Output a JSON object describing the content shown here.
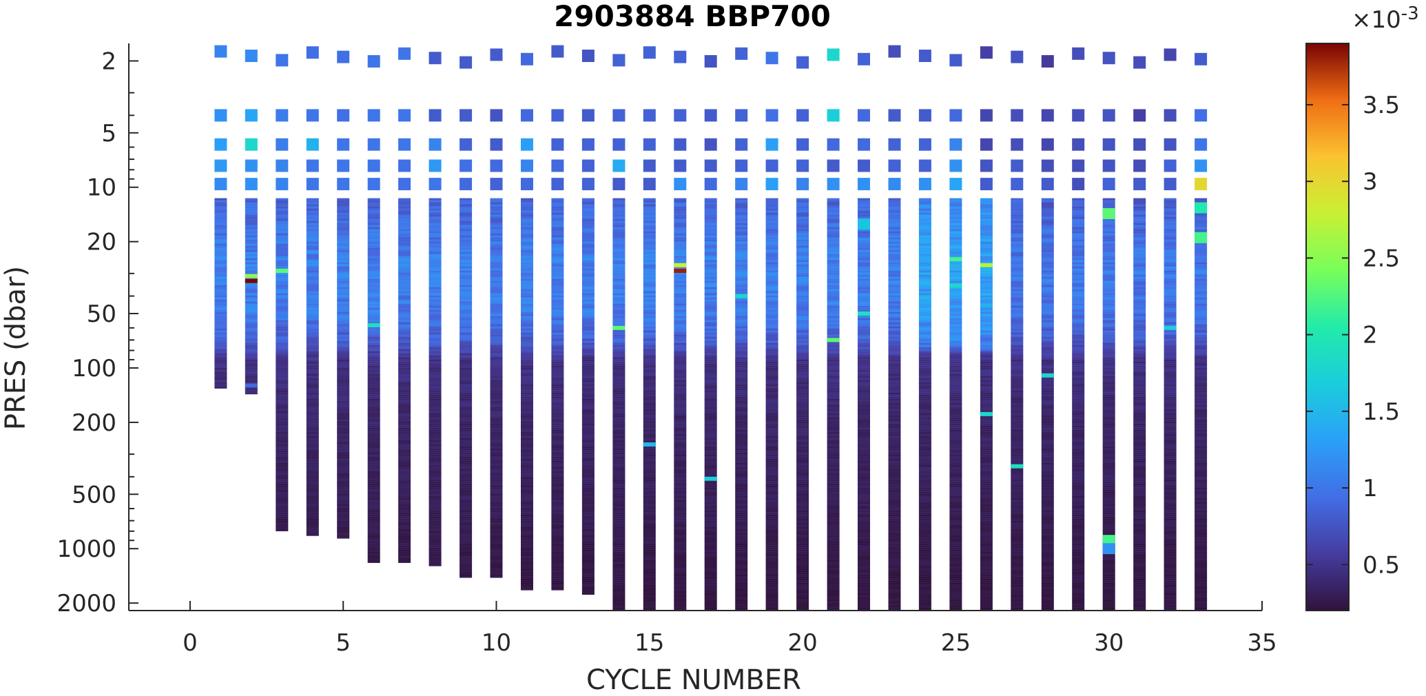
{
  "chart_data": {
    "type": "heatmap",
    "title": "2903884 BBP700",
    "xlabel": "CYCLE NUMBER",
    "ylabel": "PRES (dbar)",
    "xlim": [
      -2,
      35
    ],
    "ylim": [
      2200,
      1.6
    ],
    "yscale": "log",
    "y_reversed": true,
    "x_ticks": [
      0,
      5,
      10,
      15,
      20,
      25,
      30,
      35
    ],
    "y_ticks": [
      2,
      5,
      10,
      20,
      50,
      100,
      200,
      500,
      1000,
      2000
    ],
    "colorbar": {
      "colormap": "turbo",
      "range": [
        0.0002,
        0.0039
      ],
      "ticks": [
        0.5,
        1,
        1.5,
        2,
        2.5,
        3,
        3.5
      ],
      "exponent_label": "×10",
      "exponent": "-3"
    },
    "grid": false,
    "cycles": [
      1,
      2,
      3,
      4,
      5,
      6,
      7,
      8,
      9,
      10,
      11,
      12,
      13,
      14,
      15,
      16,
      17,
      18,
      19,
      20,
      21,
      22,
      23,
      24,
      25,
      26,
      27,
      28,
      29,
      30,
      31,
      32,
      33
    ],
    "max_pressure_dbar": [
      130,
      140,
      800,
      850,
      880,
      1200,
      1200,
      1250,
      1450,
      1450,
      1700,
      1700,
      1800,
      2200,
      2200,
      2200,
      2200,
      2200,
      2200,
      2200,
      2200,
      2200,
      2200,
      2200,
      2200,
      2200,
      2200,
      2200,
      2200,
      2200,
      2200,
      2200,
      2200
    ],
    "surface_samples": {
      "pressure_dbar": [
        1.9,
        4.0,
        5.8,
        7.6,
        9.6
      ],
      "values_e3": [
        [
          1.1,
          1.2,
          1.3,
          1.25,
          1.15
        ],
        [
          1.15,
          1.35,
          1.8,
          1.2,
          1.2
        ],
        [
          1.0,
          1.05,
          1.05,
          1.1,
          1.1
        ],
        [
          0.95,
          1.0,
          1.45,
          1.0,
          1.0
        ],
        [
          0.95,
          0.95,
          1.0,
          1.0,
          1.0
        ],
        [
          1.0,
          1.0,
          1.0,
          1.0,
          1.0
        ],
        [
          1.0,
          1.0,
          1.0,
          0.95,
          0.95
        ],
        [
          0.8,
          0.8,
          1.1,
          1.25,
          1.0
        ],
        [
          0.8,
          0.8,
          0.85,
          0.95,
          0.9
        ],
        [
          0.8,
          0.75,
          0.8,
          0.9,
          0.85
        ],
        [
          0.9,
          0.9,
          1.3,
          1.1,
          0.9
        ],
        [
          0.8,
          0.85,
          0.85,
          0.9,
          0.85
        ],
        [
          0.75,
          0.8,
          0.85,
          0.85,
          0.85
        ],
        [
          0.85,
          0.85,
          0.85,
          1.4,
          0.8
        ],
        [
          0.85,
          0.85,
          0.85,
          0.8,
          0.8
        ],
        [
          0.85,
          0.85,
          0.8,
          0.8,
          1.2
        ],
        [
          0.75,
          0.8,
          0.75,
          0.8,
          0.9
        ],
        [
          0.85,
          0.85,
          0.85,
          0.85,
          1.1
        ],
        [
          1.0,
          0.95,
          1.3,
          0.85,
          1.3
        ],
        [
          0.85,
          0.85,
          0.85,
          0.85,
          1.1
        ],
        [
          1.8,
          1.7,
          0.9,
          0.8,
          1.2
        ],
        [
          0.85,
          0.9,
          0.9,
          0.8,
          1.2
        ],
        [
          0.7,
          0.8,
          0.85,
          0.85,
          1.15
        ],
        [
          0.8,
          0.8,
          0.85,
          0.85,
          1.2
        ],
        [
          0.8,
          0.9,
          1.1,
          1.2,
          1.35
        ],
        [
          0.6,
          0.65,
          0.65,
          0.75,
          0.8
        ],
        [
          0.75,
          0.7,
          0.7,
          0.8,
          0.85
        ],
        [
          0.55,
          0.65,
          0.65,
          0.7,
          0.8
        ],
        [
          0.7,
          0.7,
          0.7,
          0.7,
          0.7
        ],
        [
          0.75,
          0.75,
          0.75,
          0.75,
          0.85
        ],
        [
          0.7,
          0.6,
          0.7,
          0.7,
          0.8
        ],
        [
          0.65,
          0.7,
          0.75,
          0.85,
          0.8
        ],
        [
          0.8,
          0.95,
          1.0,
          1.2,
          3.0
        ]
      ]
    },
    "profile_value_e3_by_pressure": {
      "pressure_dbar": [
        12,
        20,
        30,
        50,
        70,
        90,
        200,
        500,
        1000,
        2000
      ],
      "values_e3": [
        0.85,
        1.0,
        1.05,
        1.0,
        0.8,
        0.45,
        0.35,
        0.3,
        0.25,
        0.22
      ]
    },
    "highlights": [
      {
        "cycle": 2,
        "pressure_dbar": 33,
        "value_e3": 3.9
      },
      {
        "cycle": 2,
        "pressure_dbar": 31,
        "value_e3": 2.5
      },
      {
        "cycle": 2,
        "pressure_dbar": 125,
        "value_e3": 0.9
      },
      {
        "cycle": 3,
        "pressure_dbar": 29,
        "value_e3": 2.3
      },
      {
        "cycle": 6,
        "pressure_dbar": 58,
        "value_e3": 1.9
      },
      {
        "cycle": 14,
        "pressure_dbar": 60,
        "value_e3": 2.3
      },
      {
        "cycle": 15,
        "pressure_dbar": 265,
        "value_e3": 1.5
      },
      {
        "cycle": 16,
        "pressure_dbar": 29,
        "value_e3": 3.8
      },
      {
        "cycle": 16,
        "pressure_dbar": 27,
        "value_e3": 2.8
      },
      {
        "cycle": 17,
        "pressure_dbar": 410,
        "value_e3": 1.7
      },
      {
        "cycle": 18,
        "pressure_dbar": 40,
        "value_e3": 1.8
      },
      {
        "cycle": 21,
        "pressure_dbar": 70,
        "value_e3": 2.3
      },
      {
        "cycle": 22,
        "pressure_dbar": 16,
        "value_e3": 1.6
      },
      {
        "cycle": 22,
        "pressure_dbar": 50,
        "value_e3": 1.9
      },
      {
        "cycle": 25,
        "pressure_dbar": 25,
        "value_e3": 2.2
      },
      {
        "cycle": 25,
        "pressure_dbar": 35,
        "value_e3": 1.8
      },
      {
        "cycle": 26,
        "pressure_dbar": 27,
        "value_e3": 2.7
      },
      {
        "cycle": 26,
        "pressure_dbar": 180,
        "value_e3": 1.8
      },
      {
        "cycle": 27,
        "pressure_dbar": 350,
        "value_e3": 1.9
      },
      {
        "cycle": 28,
        "pressure_dbar": 110,
        "value_e3": 1.8
      },
      {
        "cycle": 30,
        "pressure_dbar": 14,
        "value_e3": 2.3
      },
      {
        "cycle": 30,
        "pressure_dbar": 900,
        "value_e3": 2.2
      },
      {
        "cycle": 30,
        "pressure_dbar": 1000,
        "value_e3": 1.2
      },
      {
        "cycle": 32,
        "pressure_dbar": 60,
        "value_e3": 1.7
      },
      {
        "cycle": 33,
        "pressure_dbar": 13,
        "value_e3": 2.0
      },
      {
        "cycle": 33,
        "pressure_dbar": 19,
        "value_e3": 2.2
      }
    ]
  }
}
